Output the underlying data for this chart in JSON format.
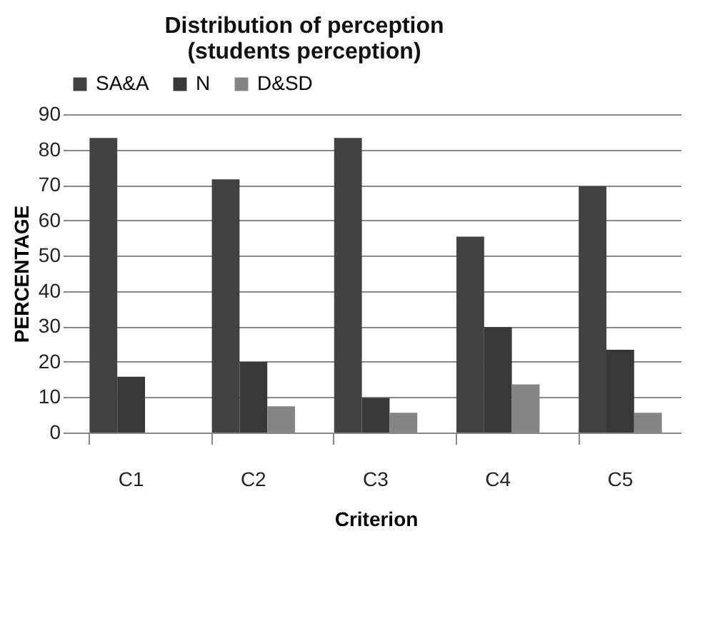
{
  "chart_data": {
    "type": "bar",
    "title": "Distribution of perception\n(students perception)",
    "xlabel": "Criterion",
    "ylabel": "PERCENTAGE",
    "categories": [
      "C1",
      "C2",
      "C3",
      "C4",
      "C5"
    ],
    "series": [
      {
        "name": "SA&A",
        "color": "#424242",
        "values": [
          83.3,
          71.6,
          83.3,
          55.4,
          69.6
        ]
      },
      {
        "name": "N",
        "color": "#383838",
        "values": [
          15.8,
          20,
          9.8,
          29.8,
          23.4
        ]
      },
      {
        "name": "D&SD",
        "color": "#858585",
        "values": [
          0,
          7.4,
          5.6,
          13.6,
          5.6
        ]
      }
    ],
    "ylim": [
      0,
      90
    ],
    "yticks": [
      0,
      10,
      20,
      30,
      40,
      50,
      60,
      70,
      80,
      90
    ],
    "grid": "y",
    "legend": "top"
  }
}
